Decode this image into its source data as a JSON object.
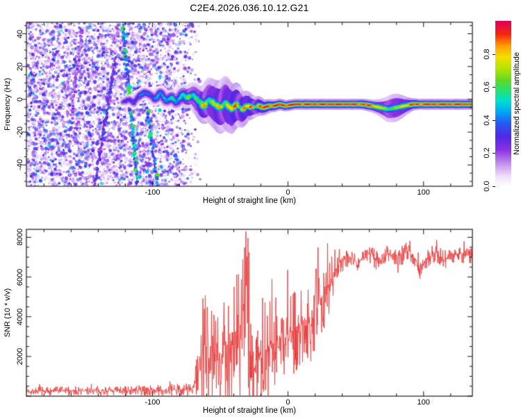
{
  "title": "C2E4.2026.036.10.12.G21",
  "chart_data": [
    {
      "type": "heatmap",
      "panel": "spectrogram",
      "xlabel": "Height of straight line (km)",
      "ylabel": "Frequency (Hz)",
      "xlim": [
        -193,
        136
      ],
      "ylim": [
        -53,
        47
      ],
      "xtick_labels": [
        "-100",
        "0",
        "100"
      ],
      "xtick_values": [
        -100,
        0,
        100
      ],
      "x_minor_step": 20,
      "x_major_step": 100,
      "ytick_labels": [
        "40",
        "20",
        "0",
        "-20",
        "-40"
      ],
      "ytick_values": [
        40,
        20,
        0,
        -20,
        -40
      ],
      "y_minor_step": 5,
      "y_major_step": 20,
      "grid": false,
      "colorbar": {
        "label": "Normalized spectral amplitude",
        "tick_labels": [
          "0.0",
          "0.2",
          "0.4",
          "0.6",
          "0.8"
        ],
        "tick_values": [
          0,
          0.2,
          0.4,
          0.6,
          0.8
        ],
        "range": [
          0,
          1
        ]
      },
      "colormap": [
        [
          0,
          "#ffffff"
        ],
        [
          0.06,
          "#efe0fa"
        ],
        [
          0.14,
          "#c08cec"
        ],
        [
          0.22,
          "#8c30e2"
        ],
        [
          0.3,
          "#5028e6"
        ],
        [
          0.38,
          "#2858f0"
        ],
        [
          0.45,
          "#00a8f4"
        ],
        [
          0.52,
          "#00e0cc"
        ],
        [
          0.58,
          "#28e070"
        ],
        [
          0.64,
          "#60d828"
        ],
        [
          0.71,
          "#b4e400"
        ],
        [
          0.78,
          "#f4e000"
        ],
        [
          0.85,
          "#ff9c00"
        ],
        [
          0.92,
          "#f42410"
        ],
        [
          1,
          "#e2005c"
        ]
      ],
      "features": {
        "description": "Speckled purple noise fills -193 to about -65 km; faint diagonal streaks near -120 km; a wiggly echo band near 0 Hz starts ~-120 km, intensifies (green/yellow/red blobs) from -75 to -20 km, then becomes a tight red-cored horizontal line at about -3 Hz out to +136 km with a weaker green dip near +75 km",
        "noise_region": {
          "x_range": [
            -193,
            -64
          ],
          "fade_start": -90,
          "value_range": [
            0.05,
            0.4
          ]
        },
        "streaks": [
          {
            "from": [
              -122,
              47
            ],
            "to": [
              -111,
              -53
            ],
            "value": 0.4,
            "dots": true
          },
          {
            "from": [
              -127,
              25
            ],
            "to": [
              -143,
              -53
            ],
            "value": 0.28,
            "dots": false
          },
          {
            "from": [
              -104,
              -5
            ],
            "to": [
              -96,
              -53
            ],
            "value": 0.38,
            "dots": true
          },
          {
            "from": [
              -152,
              42
            ],
            "to": [
              -160,
              -10
            ],
            "value": 0.2,
            "dots": false
          }
        ],
        "band_points": [
          [
            -122,
            -2,
            0.28,
            2.6
          ],
          [
            -118,
            0,
            0.33,
            2.8
          ],
          [
            -114,
            -2,
            0.37,
            3
          ],
          [
            -110,
            2,
            0.4,
            3
          ],
          [
            -106,
            4,
            0.42,
            3.2
          ],
          [
            -102,
            3,
            0.45,
            3.2
          ],
          [
            -98,
            0,
            0.44,
            3.4
          ],
          [
            -94,
            4,
            0.5,
            3.4
          ],
          [
            -90,
            -1,
            0.52,
            3.6
          ],
          [
            -86,
            1,
            0.55,
            3.8
          ],
          [
            -82,
            -2,
            0.52,
            3.8
          ],
          [
            -78,
            3,
            0.6,
            4
          ],
          [
            -74,
            1,
            0.66,
            4.2
          ],
          [
            -70,
            3,
            0.72,
            4.2
          ],
          [
            -66,
            -1,
            0.74,
            4.4
          ],
          [
            -62,
            -4,
            0.82,
            4.4
          ],
          [
            -58,
            0,
            0.78,
            4.4
          ],
          [
            -54,
            -3,
            0.86,
            4.2
          ],
          [
            -50,
            -5,
            0.82,
            4.2
          ],
          [
            -46,
            -2,
            0.88,
            4
          ],
          [
            -42,
            -6,
            0.9,
            3.8
          ],
          [
            -38,
            -3,
            0.92,
            3.6
          ],
          [
            -34,
            -6,
            0.94,
            3.4
          ],
          [
            -30,
            -4,
            0.92,
            3.2
          ],
          [
            -26,
            -5,
            0.95,
            3
          ],
          [
            -22,
            -4,
            0.93,
            3
          ],
          [
            -18,
            -5,
            0.96,
            2.8
          ],
          [
            -14,
            -4,
            0.95,
            2.8
          ],
          [
            -10,
            -4,
            0.96,
            2.6
          ],
          [
            -6,
            -3,
            0.95,
            2.6
          ],
          [
            -2,
            -4,
            0.96,
            2.6
          ],
          [
            5,
            -3,
            0.96,
            2.5
          ],
          [
            15,
            -3,
            0.96,
            2.5
          ],
          [
            25,
            -3,
            0.96,
            2.5
          ],
          [
            35,
            -3,
            0.97,
            2.5
          ],
          [
            45,
            -3,
            0.96,
            2.5
          ],
          [
            55,
            -3,
            0.95,
            2.6
          ],
          [
            62,
            -4,
            0.9,
            2.8
          ],
          [
            68,
            -5,
            0.78,
            3.2
          ],
          [
            74,
            -6,
            0.62,
            3.6
          ],
          [
            80,
            -5,
            0.68,
            3.4
          ],
          [
            86,
            -4,
            0.82,
            3
          ],
          [
            92,
            -3,
            0.92,
            2.6
          ],
          [
            100,
            -3,
            0.96,
            2.5
          ],
          [
            110,
            -3,
            0.96,
            2.5
          ],
          [
            120,
            -3,
            0.96,
            2.5
          ],
          [
            130,
            -3,
            0.96,
            2.5
          ],
          [
            136,
            -3,
            0.96,
            2.5
          ]
        ]
      }
    },
    {
      "type": "line",
      "panel": "snr",
      "color": "#e83a3a",
      "xlabel": "Height of straight line (km)",
      "ylabel": "SNR (10 * v/v)",
      "xlim": [
        -193,
        136
      ],
      "ylim": [
        0,
        8400
      ],
      "xtick_labels": [
        "-100",
        "0",
        "100"
      ],
      "xtick_values": [
        -100,
        0,
        100
      ],
      "x_minor_step": 20,
      "x_major_step": 100,
      "ytick_labels": [
        "2000",
        "4000",
        "6000",
        "8000"
      ],
      "ytick_values": [
        2000,
        4000,
        6000,
        8000
      ],
      "y_minor_step": 500,
      "y_major_step": 2000,
      "grid": false,
      "peak_spike": {
        "km": -31,
        "value": 8300
      },
      "envelope": [
        [
          -193,
          260,
          150
        ],
        [
          -150,
          265,
          150
        ],
        [
          -120,
          275,
          160
        ],
        [
          -100,
          285,
          170
        ],
        [
          -85,
          300,
          200
        ],
        [
          -75,
          330,
          260
        ],
        [
          -70,
          420,
          380
        ],
        [
          -67,
          1000,
          900
        ],
        [
          -64,
          1900,
          1700
        ],
        [
          -61,
          2400,
          2200
        ],
        [
          -58,
          2600,
          2400
        ],
        [
          -55,
          2100,
          1900
        ],
        [
          -52,
          1700,
          1500
        ],
        [
          -49,
          2100,
          1800
        ],
        [
          -46,
          2600,
          2200
        ],
        [
          -43,
          2300,
          1900
        ],
        [
          -40,
          2800,
          2200
        ],
        [
          -37,
          3200,
          2400
        ],
        [
          -34,
          3800,
          2700
        ],
        [
          -31,
          5600,
          2800
        ],
        [
          -29,
          3200,
          2600
        ],
        [
          -27,
          2100,
          1700
        ],
        [
          -25,
          1400,
          1100
        ],
        [
          -23,
          1800,
          1400
        ],
        [
          -21,
          2200,
          1600
        ],
        [
          -19,
          1800,
          1300
        ],
        [
          -17,
          2400,
          1600
        ],
        [
          -15,
          2000,
          1400
        ],
        [
          -13,
          2600,
          1600
        ],
        [
          -11,
          2200,
          1400
        ],
        [
          -9,
          2800,
          1500
        ],
        [
          -7,
          2400,
          1300
        ],
        [
          -5,
          3000,
          1500
        ],
        [
          -3,
          2600,
          1300
        ],
        [
          -1,
          3200,
          1500
        ],
        [
          1,
          2800,
          1300
        ],
        [
          3,
          3400,
          1500
        ],
        [
          5,
          3000,
          1300
        ],
        [
          7,
          3600,
          1500
        ],
        [
          9,
          3200,
          1300
        ],
        [
          11,
          3800,
          1500
        ],
        [
          13,
          3400,
          1300
        ],
        [
          15,
          4000,
          1400
        ],
        [
          17,
          3600,
          1200
        ],
        [
          19,
          4200,
          1400
        ],
        [
          21,
          4400,
          1300
        ],
        [
          23,
          4800,
          1200
        ],
        [
          25,
          4600,
          1100
        ],
        [
          27,
          5200,
          1100
        ],
        [
          29,
          5400,
          1000
        ],
        [
          31,
          5800,
          900
        ],
        [
          33,
          6000,
          800
        ],
        [
          35,
          6400,
          700
        ],
        [
          37,
          6600,
          550
        ],
        [
          39,
          6900,
          450
        ],
        [
          42,
          7000,
          380
        ],
        [
          45,
          7100,
          330
        ],
        [
          48,
          6900,
          300
        ],
        [
          51,
          6700,
          300
        ],
        [
          54,
          6900,
          300
        ],
        [
          57,
          7100,
          300
        ],
        [
          60,
          7200,
          300
        ],
        [
          63,
          7000,
          300
        ],
        [
          66,
          6800,
          320
        ],
        [
          69,
          6900,
          300
        ],
        [
          72,
          7100,
          300
        ],
        [
          75,
          7200,
          300
        ],
        [
          78,
          7000,
          300
        ],
        [
          81,
          6900,
          300
        ],
        [
          84,
          7100,
          330
        ],
        [
          87,
          7400,
          380
        ],
        [
          89,
          7500,
          420
        ],
        [
          91,
          7100,
          330
        ],
        [
          94,
          6900,
          300
        ],
        [
          96,
          6500,
          320
        ],
        [
          98,
          6300,
          300
        ],
        [
          100,
          6700,
          300
        ],
        [
          103,
          7000,
          300
        ],
        [
          106,
          7100,
          300
        ],
        [
          109,
          7200,
          300
        ],
        [
          112,
          7000,
          300
        ],
        [
          115,
          6800,
          320
        ],
        [
          118,
          7000,
          300
        ],
        [
          121,
          7200,
          300
        ],
        [
          124,
          7100,
          300
        ],
        [
          127,
          7200,
          300
        ],
        [
          130,
          7100,
          300
        ],
        [
          133,
          7150,
          300
        ],
        [
          136,
          7100,
          300
        ]
      ]
    }
  ]
}
